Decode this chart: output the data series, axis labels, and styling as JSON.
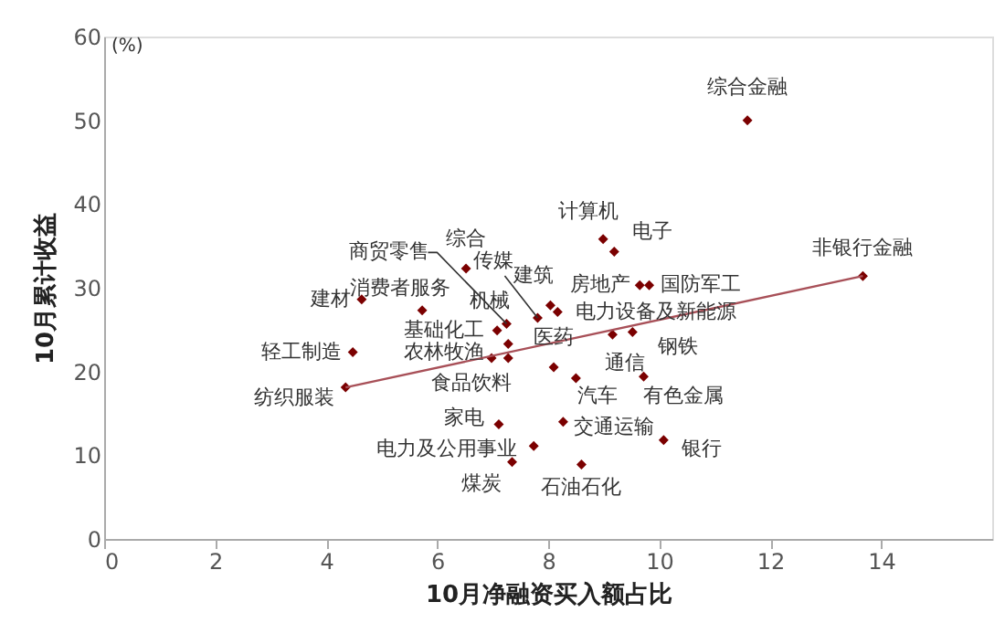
{
  "chart_data": {
    "type": "scatter",
    "xlabel": "10月净融资买入额占比",
    "ylabel": "10月累计收益",
    "xlim": [
      0,
      16
    ],
    "ylim": [
      0,
      60
    ],
    "xticks": [
      0,
      2,
      4,
      6,
      8,
      10,
      12,
      14
    ],
    "yticks": [
      0,
      10,
      20,
      30,
      40,
      50,
      60
    ],
    "grid": false,
    "legend": false,
    "marker": "diamond",
    "series": [
      {
        "color": "#7b0000",
        "x": [
          11.59,
          13.67,
          8.99,
          9.19,
          9.65,
          9.82,
          8.04,
          8.17,
          7.81,
          7.25,
          6.52,
          7.28,
          7.08,
          6.98,
          7.28,
          5.73,
          4.64,
          4.48,
          4.35,
          8.1,
          9.16,
          9.52,
          8.5,
          9.72,
          8.27,
          10.08,
          8.6,
          7.74,
          7.11,
          7.35
        ],
        "values": [
          50.0,
          31.4,
          35.8,
          34.3,
          30.3,
          30.3,
          27.9,
          27.1,
          26.4,
          25.7,
          32.3,
          23.3,
          24.9,
          21.6,
          21.6,
          27.3,
          28.6,
          22.3,
          18.1,
          20.5,
          24.4,
          24.7,
          19.2,
          19.4,
          14.0,
          11.8,
          8.9,
          11.1,
          13.7,
          9.2
        ]
      },
      {
        "type": "line",
        "marker": "none",
        "color": "#a85058",
        "x": [
          4.35,
          13.67
        ],
        "values": [
          18.1,
          31.4
        ]
      }
    ],
    "annotations": [
      "(%)",
      {
        "text": "综合金融",
        "x": 11.59,
        "y": 50.0
      },
      {
        "text": "非银行金融",
        "x": 13.67,
        "y": 31.4
      },
      {
        "text": "计算机",
        "x": 8.99,
        "y": 35.8
      },
      {
        "text": "电子",
        "x": 9.19,
        "y": 34.3
      },
      {
        "text": "房地产",
        "x": 9.65,
        "y": 30.3
      },
      {
        "text": "国防军工",
        "x": 9.82,
        "y": 30.3
      },
      {
        "text": "建筑",
        "x": 8.04,
        "y": 27.9
      },
      {
        "text": "电力设备及新能源",
        "x": 8.17,
        "y": 27.1
      },
      {
        "text": "传媒",
        "x": 7.81,
        "y": 26.4
      },
      {
        "text": "商贸零售",
        "x": 7.25,
        "y": 25.7
      },
      {
        "text": "综合",
        "x": 6.52,
        "y": 32.3
      },
      {
        "text": "机械",
        "x": 7.28,
        "y": 23.3
      },
      {
        "text": "基础化工",
        "x": 7.08,
        "y": 24.9
      },
      {
        "text": "农林牧渔",
        "x": 6.98,
        "y": 21.6
      },
      {
        "text": "食品饮料",
        "x": 7.28,
        "y": 21.6
      },
      {
        "text": "消费者服务",
        "x": 5.73,
        "y": 27.3
      },
      {
        "text": "建材",
        "x": 4.64,
        "y": 28.6
      },
      {
        "text": "轻工制造",
        "x": 4.48,
        "y": 22.3
      },
      {
        "text": "纺织服装",
        "x": 4.35,
        "y": 18.1
      },
      {
        "text": "医药",
        "x": 8.1,
        "y": 20.5
      },
      {
        "text": "通信",
        "x": 9.16,
        "y": 24.4
      },
      {
        "text": "钢铁",
        "x": 9.52,
        "y": 24.7
      },
      {
        "text": "汽车",
        "x": 8.5,
        "y": 19.2
      },
      {
        "text": "有色金属",
        "x": 9.72,
        "y": 19.4
      },
      {
        "text": "交通运输",
        "x": 8.27,
        "y": 14.0
      },
      {
        "text": "银行",
        "x": 10.08,
        "y": 11.8
      },
      {
        "text": "石油石化",
        "x": 8.6,
        "y": 8.9
      },
      {
        "text": "电力及公用事业",
        "x": 7.74,
        "y": 11.1
      },
      {
        "text": "家电",
        "x": 7.11,
        "y": 13.7
      },
      {
        "text": "煤炭",
        "x": 7.35,
        "y": 9.2
      }
    ]
  }
}
